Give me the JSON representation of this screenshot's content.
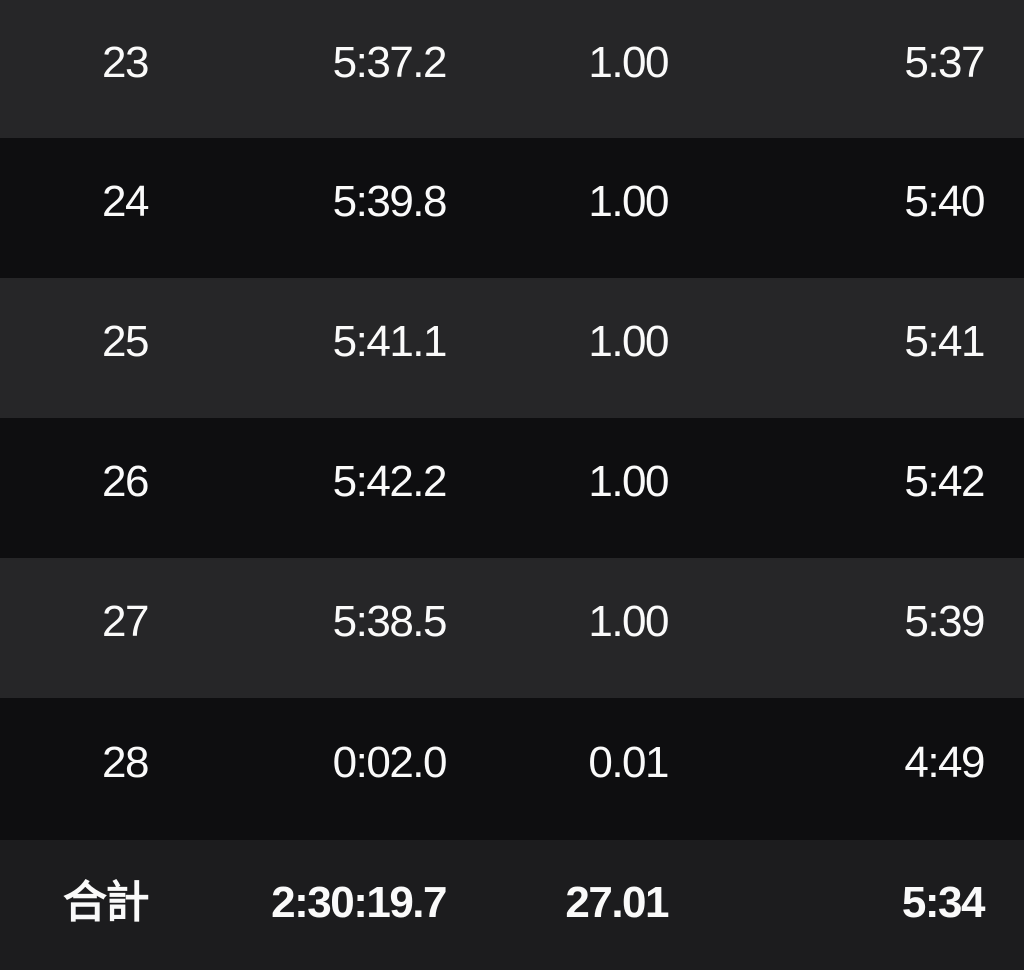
{
  "table": {
    "columns": [
      {
        "key": "lap",
        "semantic": "lap-number"
      },
      {
        "key": "time",
        "semantic": "lap-time"
      },
      {
        "key": "distance",
        "semantic": "lap-distance-km"
      },
      {
        "key": "pace",
        "semantic": "lap-avg-pace"
      }
    ],
    "rows": [
      {
        "lap": "23",
        "time": "5:37.2",
        "distance": "1.00",
        "pace": "5:37"
      },
      {
        "lap": "24",
        "time": "5:39.8",
        "distance": "1.00",
        "pace": "5:40"
      },
      {
        "lap": "25",
        "time": "5:41.1",
        "distance": "1.00",
        "pace": "5:41"
      },
      {
        "lap": "26",
        "time": "5:42.2",
        "distance": "1.00",
        "pace": "5:42"
      },
      {
        "lap": "27",
        "time": "5:38.5",
        "distance": "1.00",
        "pace": "5:39"
      },
      {
        "lap": "28",
        "time": "0:02.0",
        "distance": "0.01",
        "pace": "4:49"
      }
    ],
    "total": {
      "label": "合計",
      "time": "2:30:19.7",
      "distance": "27.01",
      "pace": "5:34"
    }
  },
  "colors": {
    "row_light": "#262628",
    "row_dark": "#0e0e10",
    "row_total": "#1c1c1e",
    "text": "#fafafa"
  }
}
